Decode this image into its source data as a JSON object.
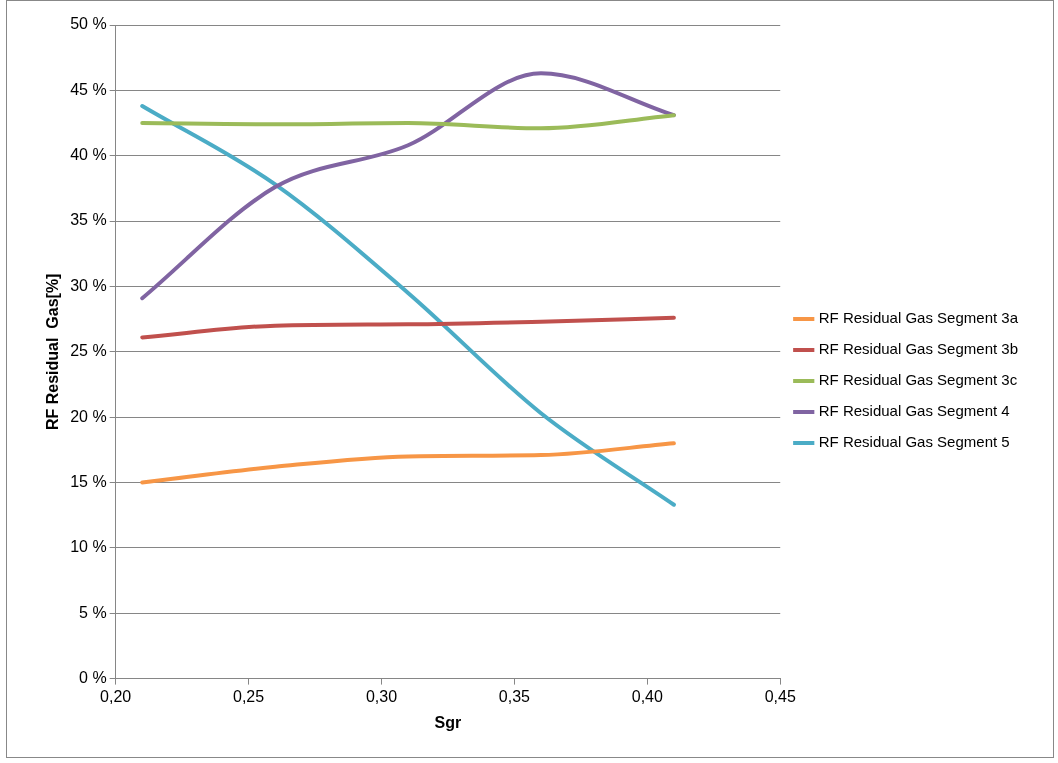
{
  "chart_data": {
    "type": "line",
    "xlabel": "Sgr",
    "ylabel": "RF Residual  Gas[%]",
    "x": [
      0.21,
      0.26,
      0.31,
      0.36,
      0.41
    ],
    "series": [
      {
        "name": "RF Residual Gas Segment 3a",
        "color": "#f79646",
        "values": [
          15.0,
          16.2,
          17.0,
          17.1,
          18.0
        ]
      },
      {
        "name": "RF Residual Gas Segment 3b",
        "color": "#c0504d",
        "values": [
          26.1,
          27.0,
          27.1,
          27.3,
          27.6
        ]
      },
      {
        "name": "RF Residual Gas Segment 3c",
        "color": "#9bbb59",
        "values": [
          42.5,
          42.4,
          42.5,
          42.1,
          43.1
        ]
      },
      {
        "name": "RF Residual Gas Segment 4",
        "color": "#8064a2",
        "values": [
          29.1,
          37.6,
          40.8,
          46.3,
          43.1
        ]
      },
      {
        "name": "RF Residual Gas Segment 5",
        "color": "#4bacc6",
        "values": [
          43.8,
          37.8,
          29.5,
          20.3,
          13.3
        ]
      }
    ],
    "xlim": [
      0.2,
      0.45
    ],
    "xticks": [
      {
        "value": 0.2,
        "label": "0,20"
      },
      {
        "value": 0.25,
        "label": "0,25"
      },
      {
        "value": 0.3,
        "label": "0,30"
      },
      {
        "value": 0.35,
        "label": "0,35"
      },
      {
        "value": 0.4,
        "label": "0,40"
      },
      {
        "value": 0.45,
        "label": "0,45"
      }
    ],
    "ylim": [
      0,
      50
    ],
    "yticks": [
      {
        "value": 0,
        "label": "0 %"
      },
      {
        "value": 5,
        "label": "5 %"
      },
      {
        "value": 10,
        "label": "10 %"
      },
      {
        "value": 15,
        "label": "15 %"
      },
      {
        "value": 20,
        "label": "20 %"
      },
      {
        "value": 25,
        "label": "25 %"
      },
      {
        "value": 30,
        "label": "30 %"
      },
      {
        "value": 35,
        "label": "35 %"
      },
      {
        "value": 40,
        "label": "40 %"
      },
      {
        "value": 45,
        "label": "45 %"
      },
      {
        "value": 50,
        "label": "50 %"
      }
    ],
    "grid": "y",
    "legend": "right",
    "marker": "none",
    "line_style": "solid"
  }
}
